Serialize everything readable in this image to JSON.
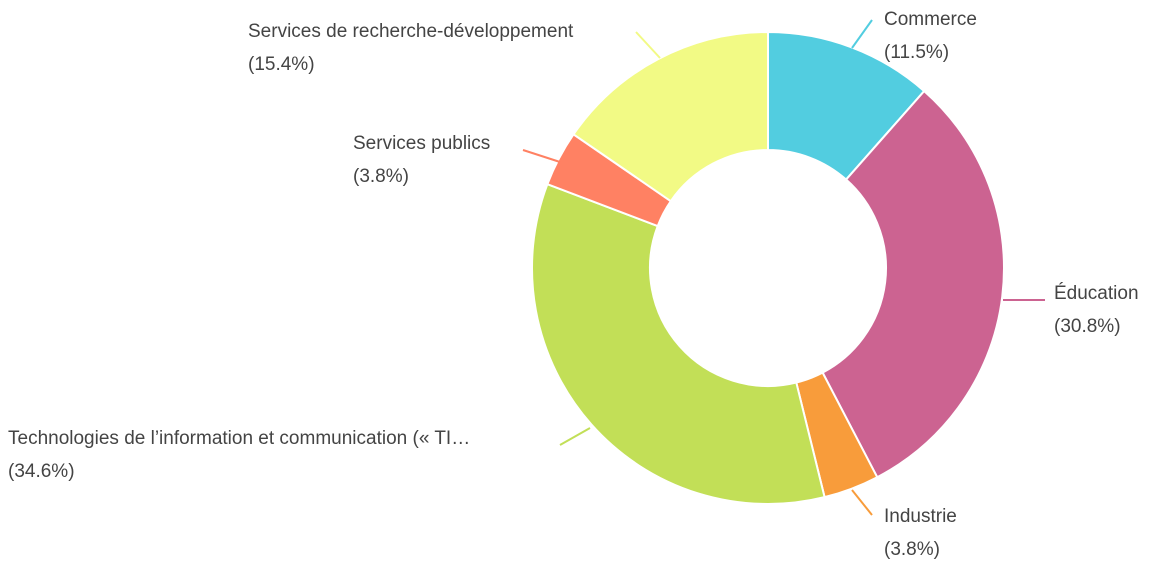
{
  "chart_data": {
    "type": "donut",
    "categories": [
      "Commerce",
      "Éducation",
      "Industrie",
      "Technologies de l’information et communication (« TI…",
      "Services publics",
      "Services de recherche-développement"
    ],
    "values": [
      11.5,
      30.8,
      3.8,
      34.6,
      3.8,
      15.4
    ],
    "value_labels": [
      "(11.5%)",
      "(30.8%)",
      "(3.8%)",
      "(34.6%)",
      "(3.8%)",
      "(15.4%)"
    ],
    "colors": [
      "#52cde0",
      "#cc6391",
      "#f89c3b",
      "#c2df57",
      "#ff8163",
      "#f2fa85"
    ]
  }
}
